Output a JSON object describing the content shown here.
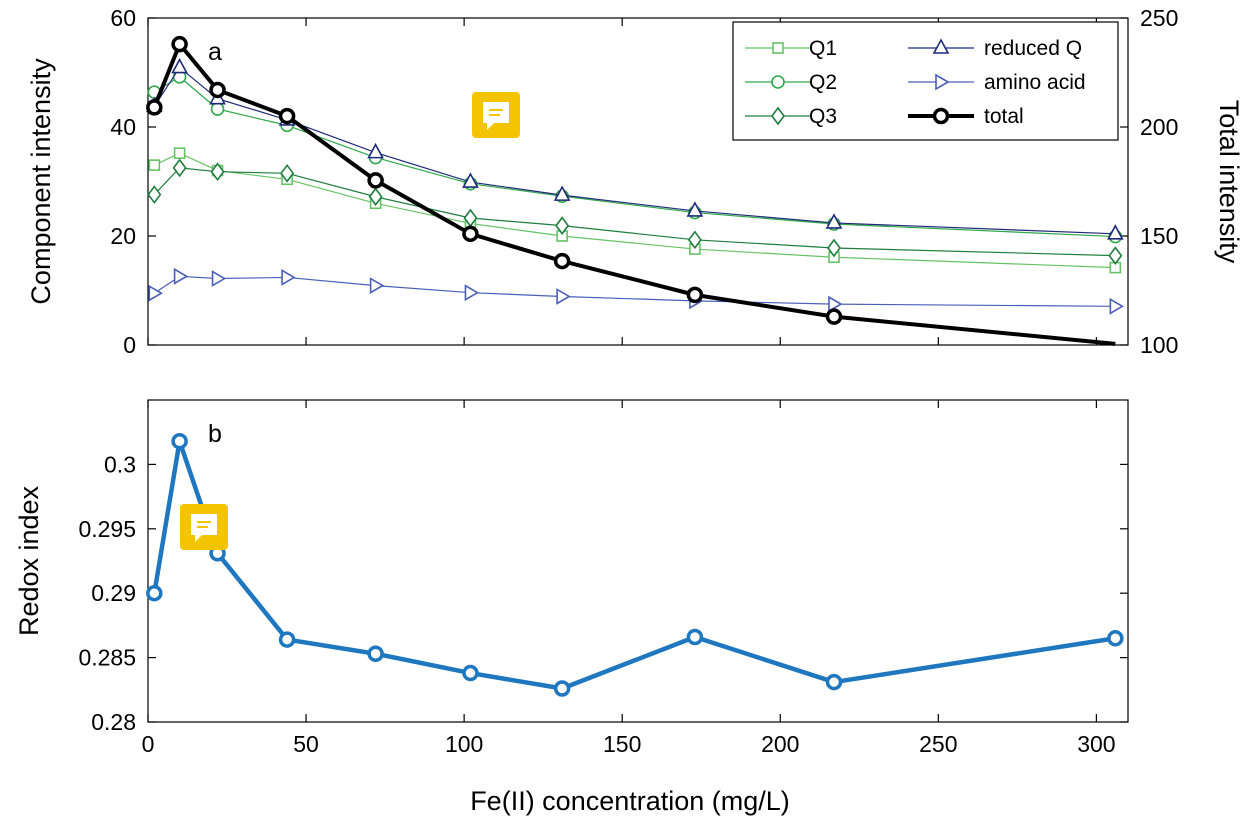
{
  "chart_data": [
    {
      "panel": "a",
      "type": "line",
      "xlabel": "Fe(II) concentration (mg/L)",
      "ylabel": "Component intensity",
      "y2label": "Total intensity",
      "xlim": [
        0,
        310
      ],
      "ylim": [
        0,
        60
      ],
      "y2lim": [
        100,
        250
      ],
      "xticks": [
        "0",
        "50",
        "100",
        "150",
        "200",
        "250",
        "300"
      ],
      "yticks": [
        "0",
        "20",
        "40",
        "60"
      ],
      "y2ticks": [
        "100",
        "150",
        "200",
        "250"
      ],
      "legend_position": "top-right",
      "x": [
        2,
        10,
        22,
        44,
        72,
        102,
        131,
        173,
        217,
        306
      ],
      "series": [
        {
          "name": "Q1",
          "axis": "left",
          "marker": "square",
          "color": "#66c266",
          "values": [
            33,
            35.2,
            32,
            30.4,
            26,
            22.3,
            20,
            17.6,
            16.1,
            14.2
          ]
        },
        {
          "name": "Q2",
          "axis": "left",
          "marker": "circle",
          "color": "#2ea84a",
          "values": [
            46.4,
            49.2,
            43.3,
            40.3,
            34.4,
            29.6,
            27.3,
            24.3,
            22.2,
            19.9
          ]
        },
        {
          "name": "Q3",
          "axis": "left",
          "marker": "diamond",
          "color": "#1e7d3e",
          "values": [
            27.6,
            32.5,
            31.8,
            31.5,
            27.2,
            23.3,
            21.9,
            19.3,
            17.8,
            16.4
          ]
        },
        {
          "name": "reduced Q",
          "axis": "left",
          "marker": "triangle-up",
          "color": "#1f2a7a",
          "values": [
            43.8,
            50.9,
            45.2,
            41.3,
            35.3,
            29.9,
            27.5,
            24.6,
            22.4,
            20.4
          ]
        },
        {
          "name": "amino acid",
          "axis": "left",
          "marker": "triangle-right",
          "color": "#4a5fb8",
          "values": [
            9.5,
            12.6,
            12.2,
            12.4,
            10.9,
            9.6,
            8.9,
            8.1,
            7.5,
            7.1
          ]
        },
        {
          "name": "total",
          "axis": "right",
          "marker": "circle-filled",
          "color": "#000000",
          "values": [
            209,
            238,
            217,
            205,
            175.5,
            151,
            138.5,
            123,
            113,
            100.5
          ]
        }
      ]
    },
    {
      "panel": "b",
      "type": "line",
      "xlabel": "Fe(II) concentration (mg/L)",
      "ylabel": "Redox index",
      "xlim": [
        0,
        310
      ],
      "ylim": [
        0.28,
        0.305
      ],
      "xticks": [
        "0",
        "50",
        "100",
        "150",
        "200",
        "250",
        "300"
      ],
      "yticks": [
        "0.28",
        "0.285",
        "0.29",
        "0.295",
        "0.3"
      ],
      "x": [
        2,
        10,
        22,
        44,
        72,
        102,
        131,
        173,
        217,
        306
      ],
      "series": [
        {
          "name": "",
          "color": "#1f77c0",
          "values": [
            0.29,
            0.3018,
            0.2931,
            0.2864,
            0.2853,
            0.2838,
            0.2826,
            0.2866,
            0.2831,
            0.2865
          ]
        }
      ]
    }
  ],
  "colors": {
    "comment_icon": "#f5c400",
    "redox_line": "#1f77c0"
  },
  "icons": {
    "comment": "comment-icon"
  }
}
